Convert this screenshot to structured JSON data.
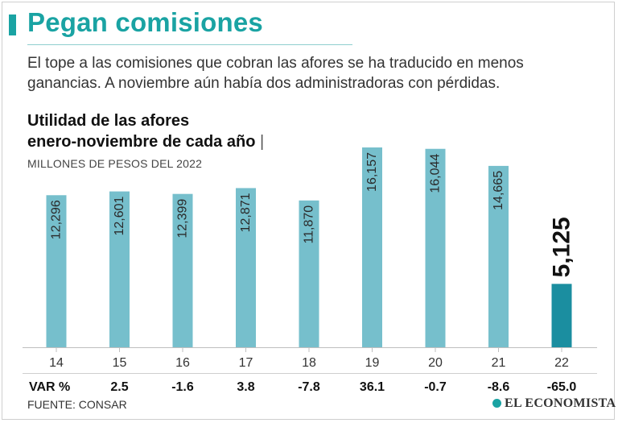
{
  "headline": "Pegan comisiones",
  "dek": "El tope a las comisiones que cobran las afores se ha traducido en menos ganancias. A noviembre aún había dos administradoras con pérdidas.",
  "source": "FUENTE: CONSAR",
  "brand": "EL ECONOMISTA",
  "colors": {
    "bar": "#76bfcc",
    "highlight": "#1b8ea0",
    "accent": "#1aa3a3"
  },
  "chart_data": {
    "type": "bar",
    "title_line1": "Utilidad de las afores",
    "title_line2": "enero-noviembre de cada año",
    "title_separator": "|",
    "subtitle": "MILLONES DE PESOS DEL 2022",
    "categories": [
      "14",
      "15",
      "16",
      "17",
      "18",
      "19",
      "20",
      "21",
      "22"
    ],
    "values": [
      12296,
      12601,
      12399,
      12871,
      11870,
      16157,
      16044,
      14665,
      5125
    ],
    "value_labels": [
      "12,296",
      "12,601",
      "12,399",
      "12,871",
      "11,870",
      "16,157",
      "16,044",
      "14,665",
      "5,125"
    ],
    "highlight_index": 8,
    "var_label": "VAR %",
    "var_values": [
      "2.5",
      "-1.6",
      "3.8",
      "-7.8",
      "36.1",
      "-0.7",
      "-8.6",
      "-65.0"
    ],
    "ylim": [
      0,
      16157
    ],
    "grid": false
  }
}
